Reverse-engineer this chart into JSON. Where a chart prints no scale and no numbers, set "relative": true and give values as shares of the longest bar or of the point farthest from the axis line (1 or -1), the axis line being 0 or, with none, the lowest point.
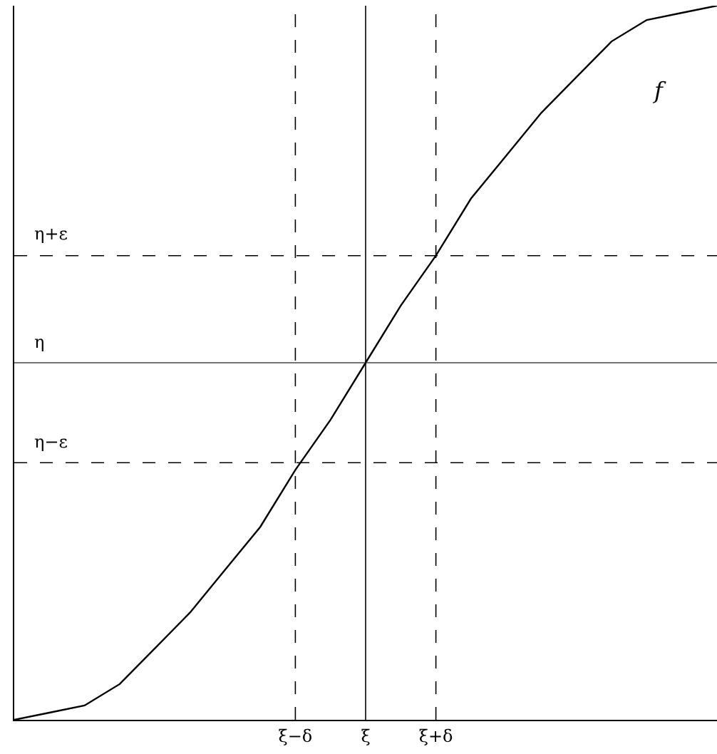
{
  "chart_data": {
    "type": "line",
    "relative": true,
    "legend": false,
    "marker": "none",
    "line_style": "solid",
    "categories": [
      null,
      null,
      null,
      null,
      null,
      null,
      null,
      null,
      "ξ−δ",
      null,
      "ξ",
      null,
      "ξ+δ",
      null,
      null,
      null,
      null,
      null,
      null,
      null,
      null
    ],
    "series": [
      {
        "name": "f",
        "color": "#000000",
        "values": [
          0,
          0.01,
          0.02,
          0.05,
          0.1,
          0.15,
          0.21,
          0.27,
          0.35,
          0.42,
          0.5,
          0.58,
          0.65,
          0.73,
          0.79,
          0.85,
          0.9,
          0.95,
          0.98,
          0.99,
          1
        ]
      }
    ],
    "ref_lines": [
      {
        "axis": "y",
        "value": 0.65,
        "label": "η+ε",
        "color": "#000000",
        "line_style": "dashed"
      },
      {
        "axis": "y",
        "value": 0.5,
        "label": "η",
        "color": "#444444",
        "line_style": "solid"
      },
      {
        "axis": "y",
        "value": 0.36,
        "label": "η−ε",
        "color": "#000000",
        "line_style": "dashed"
      },
      {
        "axis": "x",
        "value": "ξ−δ",
        "color": "#000000",
        "line_style": "dashed"
      },
      {
        "axis": "x",
        "value": "ξ",
        "color": "#000000",
        "line_style": "solid"
      },
      {
        "axis": "x",
        "value": "ξ+δ",
        "color": "#000000",
        "line_style": "dashed"
      }
    ]
  }
}
